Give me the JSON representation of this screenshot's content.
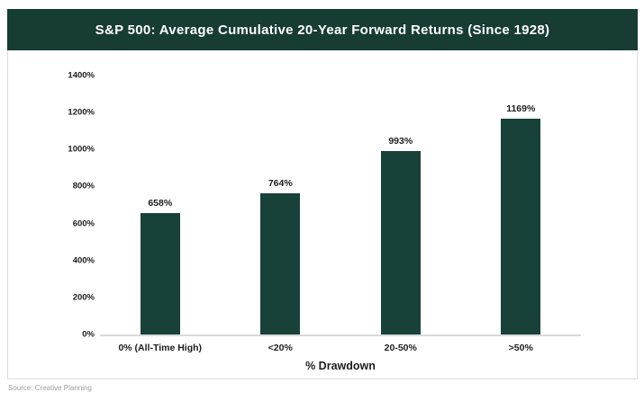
{
  "header": {
    "title": "S&P 500: Average Cumulative 20-Year Forward Returns (Since 1928)"
  },
  "chart_data": {
    "type": "bar",
    "title": "S&P 500: Average Cumulative 20-Year Forward Returns (Since 1928)",
    "categories": [
      "0% (All-Time High)",
      "<20%",
      "20-50%",
      ">50%"
    ],
    "values": [
      658,
      764,
      993,
      1169
    ],
    "value_labels": [
      "658%",
      "764%",
      "993%",
      "1169%"
    ],
    "xlabel": "% Drawdown",
    "ylabel": "",
    "ylim": [
      0,
      1400
    ],
    "ytick_step": 200,
    "ytick_labels": [
      "1400%",
      "1200%",
      "1000%",
      "800%",
      "600%",
      "400%",
      "200%",
      "0%"
    ],
    "grid": false,
    "legend": null,
    "bar_color": "#174139",
    "header_color": "#163c34"
  },
  "source": "Source: Creative Planning"
}
